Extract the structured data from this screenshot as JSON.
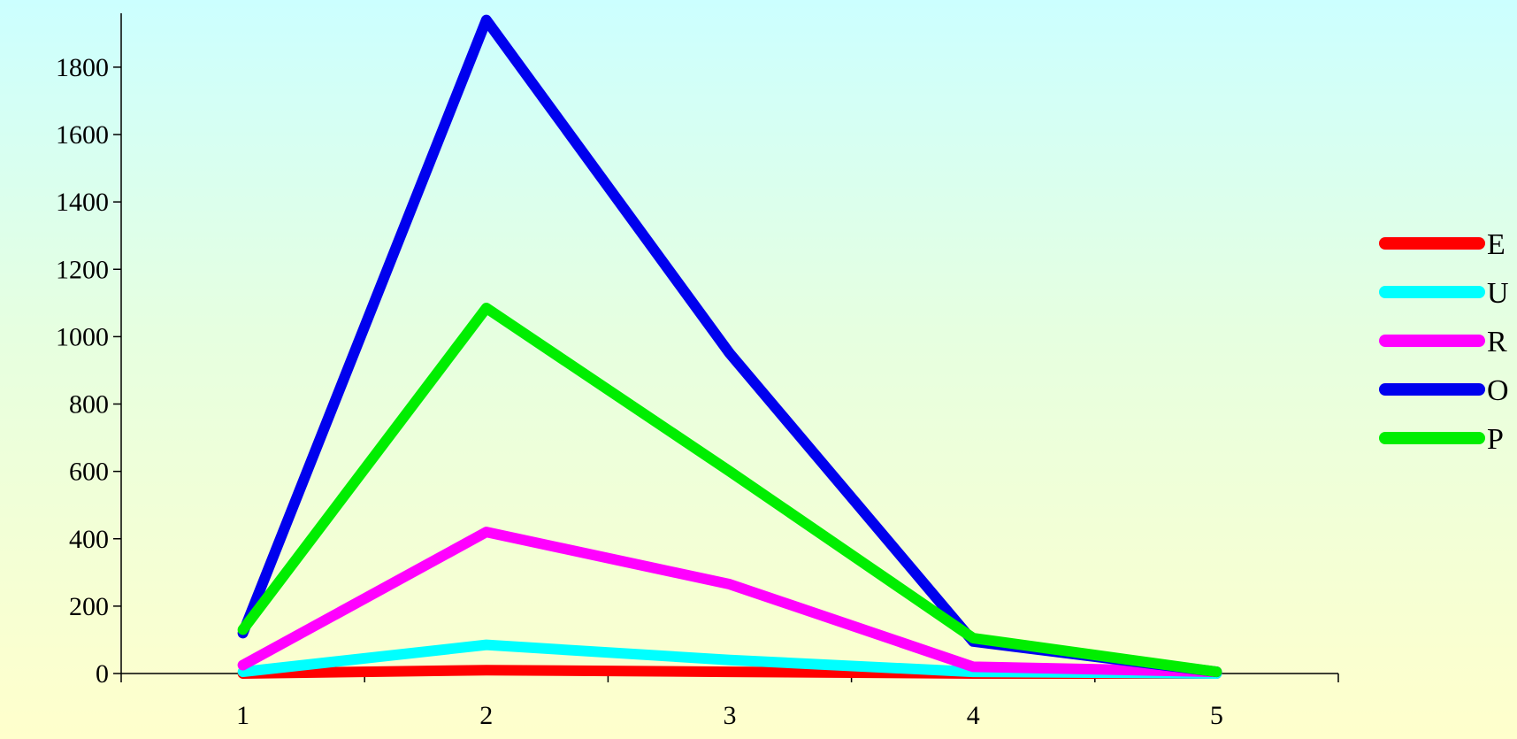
{
  "chart_data": {
    "type": "line",
    "categories": [
      "1",
      "2",
      "3",
      "4",
      "5"
    ],
    "ylim": [
      0,
      1960
    ],
    "yticks": [
      0,
      200,
      400,
      600,
      800,
      1000,
      1200,
      1400,
      1600,
      1800
    ],
    "grid": false,
    "legend_placement": "right",
    "series": [
      {
        "name": "E",
        "color": "#ff0000",
        "values": [
          0,
          10,
          5,
          0,
          0
        ]
      },
      {
        "name": "U",
        "color": "#00ffff",
        "values": [
          5,
          85,
          40,
          5,
          0
        ]
      },
      {
        "name": "R",
        "color": "#ff00ff",
        "values": [
          25,
          420,
          265,
          20,
          5
        ]
      },
      {
        "name": "O",
        "color": "#0000ee",
        "values": [
          120,
          1940,
          950,
          95,
          5
        ]
      },
      {
        "name": "P",
        "color": "#00ee00",
        "values": [
          130,
          1085,
          600,
          105,
          5
        ]
      }
    ]
  }
}
